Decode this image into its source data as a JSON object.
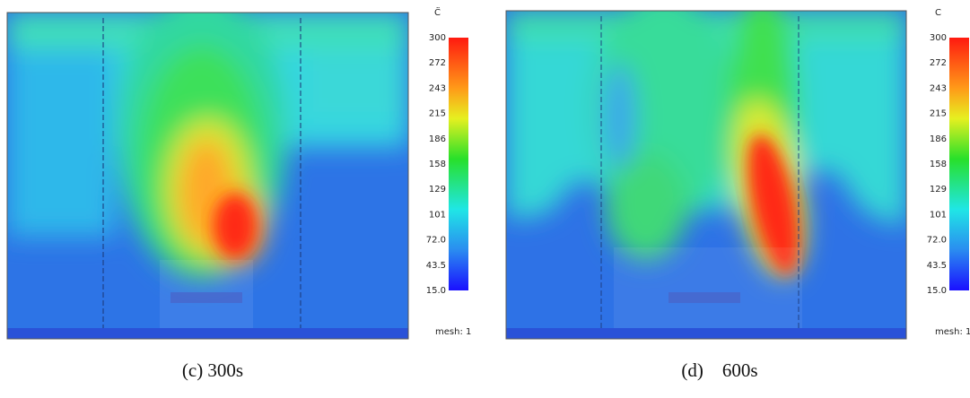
{
  "panels": [
    {
      "unit": "C̈",
      "colorbar_ticks": [
        "300",
        "272",
        "243",
        "215",
        "186",
        "158",
        "129",
        "101",
        "72.0",
        "43.5",
        "15.0"
      ],
      "mesh_label": "mesh: 1",
      "caption": "(c) 300s"
    },
    {
      "unit": "C",
      "colorbar_ticks": [
        "300",
        "272",
        "243",
        "215",
        "186",
        "158",
        "129",
        "101",
        "72.0",
        "43.5",
        "15.0"
      ],
      "mesh_label": "mesh: 1",
      "caption": "(d)    600s"
    }
  ]
}
